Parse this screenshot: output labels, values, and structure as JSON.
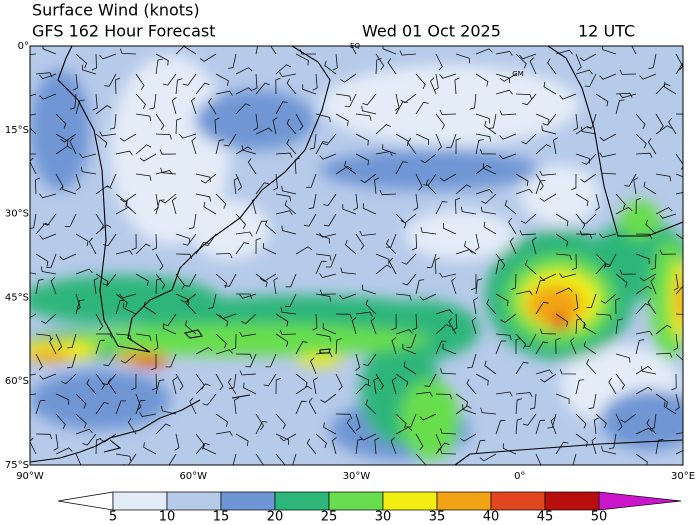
{
  "header": {
    "title": "Surface Wind (knots)",
    "model": "GFS 162 Hour Forecast",
    "date": "Wed 01 Oct 2025",
    "time": "12 UTC"
  },
  "map": {
    "lat_labels": [
      "0°",
      "15°S",
      "30°S",
      "45°S",
      "60°S",
      "75°S"
    ],
    "lon_labels": [
      "90°W",
      "60°W",
      "30°W",
      "0°",
      "30°E"
    ],
    "markers": [
      "EQ",
      "GM"
    ]
  },
  "colorbar": {
    "ticks": [
      5,
      10,
      15,
      20,
      25,
      30,
      35,
      40,
      45,
      50
    ],
    "colors": [
      "#e4ecf8",
      "#b6caea",
      "#6f96d4",
      "#2db67a",
      "#68de4e",
      "#f2ee12",
      "#f2a416",
      "#e2461e",
      "#b80e0e"
    ],
    "under_color": "#ffffff",
    "over_color": "#cc16cc"
  }
}
